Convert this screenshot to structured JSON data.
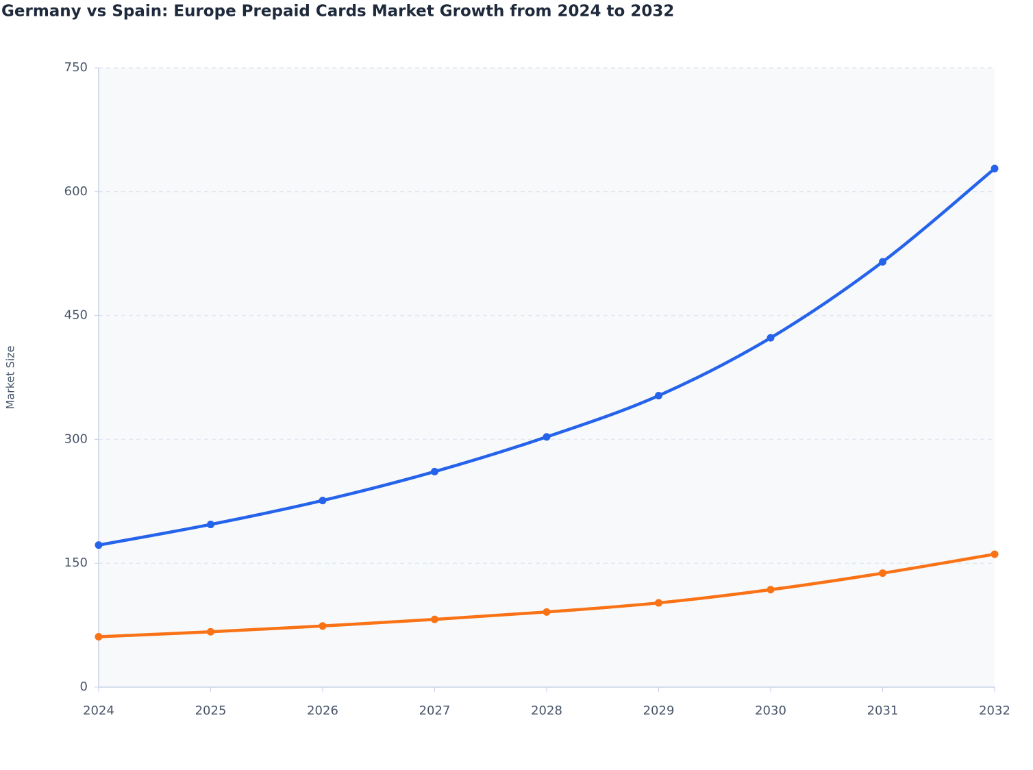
{
  "chart_data": {
    "type": "line",
    "title": "Germany vs Spain: Europe Prepaid Cards Market Growth from 2024 to 2032",
    "y_label": "Market Size",
    "categories": [
      "2024",
      "2025",
      "2026",
      "2027",
      "2028",
      "2029",
      "2030",
      "2031",
      "2032"
    ],
    "series": [
      {
        "color": "#2563eb",
        "values": [
          172,
          197,
          226,
          261,
          303,
          353,
          423,
          515,
          628
        ]
      },
      {
        "color": "#f97316",
        "values": [
          61,
          67,
          74,
          82,
          91,
          102,
          118,
          138,
          161
        ]
      }
    ],
    "ylim": [
      0,
      750
    ],
    "yticks": [
      0,
      150,
      300,
      450,
      600,
      750
    ],
    "grid": true
  }
}
